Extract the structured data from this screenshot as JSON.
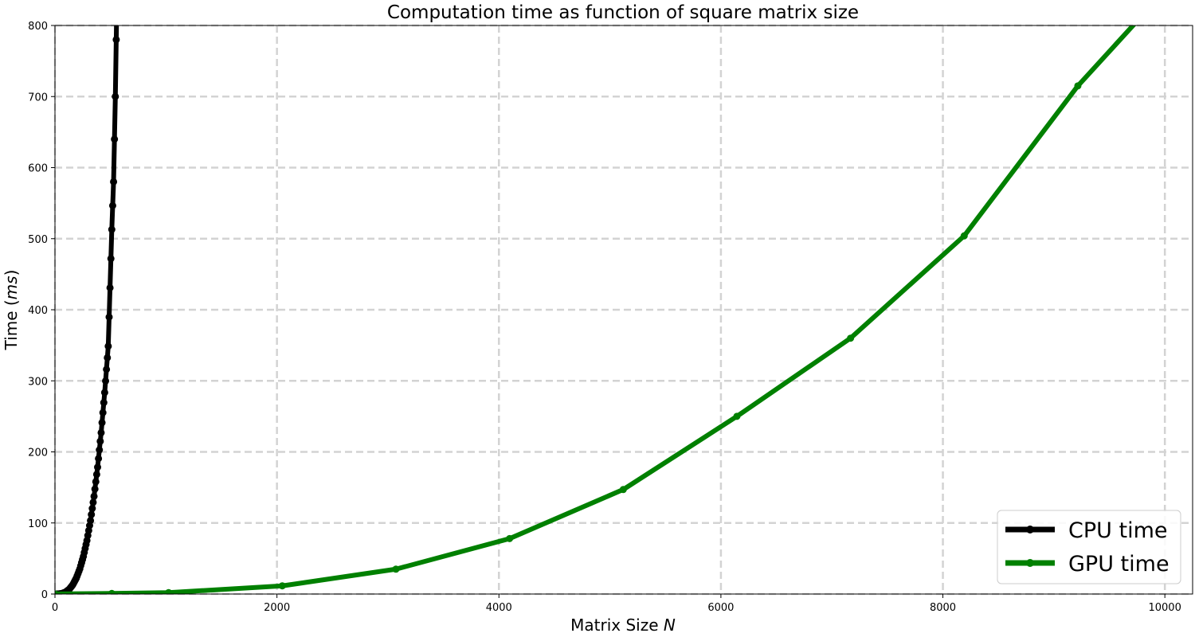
{
  "chart_data": {
    "type": "line",
    "title": "Computation time as function of square matrix size",
    "xlabel": {
      "prefix": "Matrix Size ",
      "italic": "N",
      "suffix": ""
    },
    "ylabel": {
      "prefix": "Time (",
      "italic": "ms",
      "suffix": ")"
    },
    "xlim": [
      0,
      10250
    ],
    "ylim": [
      0,
      800
    ],
    "xticks": [
      0,
      2000,
      4000,
      6000,
      8000,
      10000
    ],
    "yticks": [
      0,
      100,
      200,
      300,
      400,
      500,
      600,
      700,
      800
    ],
    "grid": true,
    "legend_position": "bottom-right",
    "series": [
      {
        "name": "CPU time",
        "color": "#000000",
        "dense_markers": true,
        "x": [
          0,
          32,
          64,
          96,
          128,
          160,
          192,
          224,
          256,
          288,
          320,
          352,
          384,
          416,
          448,
          480,
          512,
          528,
          544,
          560
        ],
        "y": [
          0,
          0.1,
          0.8,
          2.8,
          6.6,
          12.9,
          22.3,
          35.4,
          52.9,
          75.3,
          103.3,
          137.5,
          178.5,
          227.0,
          283.5,
          348.7,
          513,
          580,
          700,
          860
        ]
      },
      {
        "name": "GPU time",
        "color": "#008000",
        "dense_markers": false,
        "x": [
          0,
          512,
          1024,
          2048,
          3072,
          4096,
          5120,
          6144,
          7168,
          8192,
          9216,
          10240
        ],
        "y": [
          0.2,
          0.8,
          2.0,
          11.5,
          35,
          78,
          147,
          250,
          360,
          504,
          715,
          890
        ]
      }
    ]
  }
}
